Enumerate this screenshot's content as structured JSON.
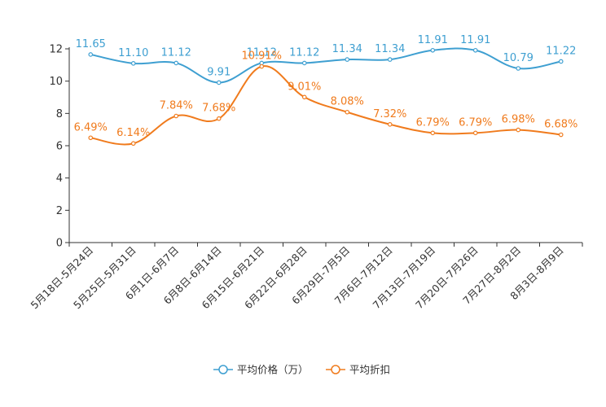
{
  "colors": {
    "price": "#3e9fd1",
    "discount": "#f07b1d",
    "axis": "#333333",
    "tick_text": "#333333",
    "legend_text": "#333333"
  },
  "chart_data": {
    "type": "line",
    "title": "",
    "xlabel": "",
    "ylabel": "",
    "ylim": [
      0,
      12
    ],
    "yticks": [
      0,
      2,
      4,
      6,
      8,
      10,
      12
    ],
    "grid": false,
    "legend_position": "bottom-center",
    "categories": [
      "5月18日-5月24日",
      "5月25日-5月31日",
      "6月1日-6月7日",
      "6月8日-6月14日",
      "6月15日-6月21日",
      "6月22日-6月28日",
      "6月29日-7月5日",
      "7月6日-7月12日",
      "7月13日-7月19日",
      "7月20日-7月26日",
      "7月27日-8月2日",
      "8月3日-8月9日"
    ],
    "series": [
      {
        "name": "平均价格（万）",
        "color_key": "price",
        "values": [
          11.65,
          11.1,
          11.12,
          9.91,
          11.12,
          11.12,
          11.34,
          11.34,
          11.91,
          11.91,
          10.79,
          11.22
        ],
        "labels": [
          "11.65",
          "11.10",
          "11.12",
          "9.91",
          "11.12",
          "11.12",
          "11.34",
          "11.34",
          "11.91",
          "11.91",
          "10.79",
          "11.22"
        ]
      },
      {
        "name": "平均折扣",
        "color_key": "discount",
        "values": [
          6.49,
          6.14,
          7.84,
          7.68,
          10.91,
          9.01,
          8.08,
          7.32,
          6.79,
          6.79,
          6.98,
          6.68
        ],
        "labels": [
          "6.49%",
          "6.14%",
          "7.84%",
          "7.68%",
          "10.91%",
          "9.01%",
          "8.08%",
          "7.32%",
          "6.79%",
          "6.79%",
          "6.98%",
          "6.68%"
        ]
      }
    ]
  }
}
